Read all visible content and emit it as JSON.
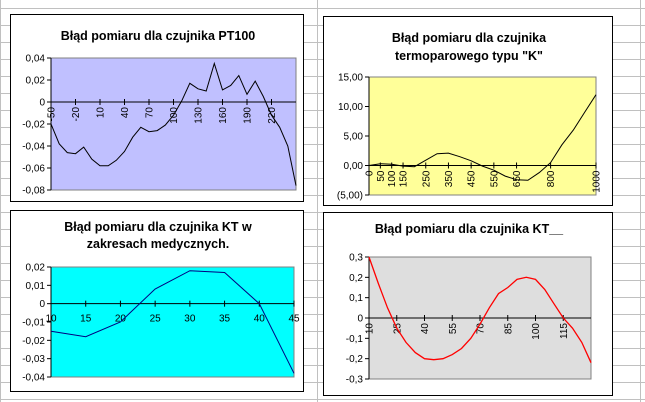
{
  "sheet": {
    "gridline_color": "#c0c0c0"
  },
  "chart_data": [
    {
      "type": "line",
      "title_lines": [
        "Błąd pomiaru dla czujnika PT100"
      ],
      "plot_bg": "#c0c0ff",
      "line_color": "#000000",
      "grid": false,
      "ylim": [
        -0.08,
        0.04
      ],
      "yticks": [
        0.04,
        0.02,
        0,
        -0.02,
        -0.04,
        -0.06,
        -0.08
      ],
      "ytick_labels": [
        "0,04",
        "0,02",
        "0",
        "-0,02",
        "-0,04",
        "-0,06",
        "-0,08"
      ],
      "xlim": [
        -50,
        250
      ],
      "xticks": [
        -50,
        -20,
        10,
        40,
        70,
        100,
        130,
        160,
        190,
        220
      ],
      "xtick_labels": [
        "-50",
        "-20",
        "10",
        "40",
        "70",
        "100",
        "130",
        "160",
        "190",
        "220"
      ],
      "x": [
        -50,
        -40,
        -30,
        -20,
        -10,
        0,
        10,
        20,
        30,
        40,
        50,
        60,
        70,
        80,
        90,
        100,
        110,
        120,
        130,
        140,
        150,
        160,
        170,
        180,
        190,
        200,
        210,
        220,
        230,
        240,
        250
      ],
      "y": [
        -0.02,
        -0.038,
        -0.046,
        -0.047,
        -0.041,
        -0.052,
        -0.058,
        -0.058,
        -0.053,
        -0.045,
        -0.032,
        -0.023,
        -0.027,
        -0.026,
        -0.021,
        -0.012,
        0.001,
        0.017,
        0.012,
        0.01,
        0.035,
        0.011,
        0.015,
        0.024,
        0.007,
        0.019,
        0.005,
        -0.012,
        -0.023,
        -0.04,
        -0.076
      ]
    },
    {
      "type": "line",
      "title_lines": [
        "Błąd pomiaru dla czujnika",
        "termoparowego typu \"K\""
      ],
      "plot_bg": "#ffff99",
      "line_color": "#000000",
      "grid": false,
      "ylim": [
        -5,
        15
      ],
      "yticks": [
        15,
        10,
        5,
        0,
        -5
      ],
      "ytick_labels": [
        "15,00",
        "10,00",
        "5,00",
        "0,00",
        "(5,00)"
      ],
      "xlim": [
        0,
        1000
      ],
      "xticks": [
        0,
        50,
        100,
        150,
        250,
        350,
        450,
        550,
        650,
        800,
        1000
      ],
      "xtick_labels": [
        "0",
        "50",
        "100",
        "150",
        "250",
        "350",
        "450",
        "550",
        "650",
        "800",
        "1000"
      ],
      "x": [
        0,
        50,
        100,
        150,
        200,
        250,
        300,
        350,
        400,
        450,
        500,
        550,
        600,
        650,
        700,
        750,
        800,
        850,
        900,
        950,
        1000
      ],
      "y": [
        0,
        0.3,
        0.2,
        -0.1,
        -0.2,
        0.9,
        2.0,
        2.1,
        1.5,
        0.8,
        -0.1,
        -0.8,
        -1.8,
        -2.4,
        -2.5,
        -1.2,
        0.5,
        3.5,
        6.0,
        9.0,
        12.0
      ]
    },
    {
      "type": "line",
      "title_lines": [
        "Błąd pomiaru dla czujnika KT w",
        "zakresach medycznych."
      ],
      "plot_bg": "#00ffff",
      "line_color": "#000080",
      "grid": false,
      "ylim": [
        -0.04,
        0.02
      ],
      "yticks": [
        0.02,
        0.01,
        0,
        -0.01,
        -0.02,
        -0.03,
        -0.04
      ],
      "ytick_labels": [
        "0,02",
        "0,01",
        "0",
        "-0,01",
        "-0,02",
        "-0,03",
        "-0,04"
      ],
      "xlim": [
        10,
        45
      ],
      "xticks": [
        10,
        15,
        20,
        25,
        30,
        35,
        40,
        45
      ],
      "xtick_labels": [
        "10",
        "15",
        "20",
        "25",
        "30",
        "35",
        "40",
        "45"
      ],
      "x": [
        10,
        15,
        20,
        25,
        30,
        35,
        40,
        45
      ],
      "y": [
        -0.015,
        -0.018,
        -0.01,
        0.008,
        0.018,
        0.017,
        0,
        -0.038
      ]
    },
    {
      "type": "line",
      "title_lines": [
        "Błąd pomiaru dla czujnika KT__"
      ],
      "plot_bg": "#dedede",
      "line_color": "#ff0000",
      "grid": false,
      "ylim": [
        -0.3,
        0.3
      ],
      "yticks": [
        0.3,
        0.2,
        0.1,
        0,
        -0.1,
        -0.2,
        -0.3
      ],
      "ytick_labels": [
        "0,3",
        "0,2",
        "0,1",
        "0",
        "-0,1",
        "-0,2",
        "-0,3"
      ],
      "xlim": [
        10,
        130
      ],
      "xticks": [
        10,
        25,
        40,
        55,
        70,
        85,
        100,
        115
      ],
      "xtick_labels": [
        "10",
        "25",
        "40",
        "55",
        "70",
        "85",
        "100",
        "115"
      ],
      "x": [
        10,
        15,
        20,
        25,
        30,
        35,
        40,
        45,
        50,
        55,
        60,
        65,
        70,
        75,
        80,
        85,
        90,
        95,
        100,
        105,
        110,
        115,
        120,
        125,
        130
      ],
      "y": [
        0.3,
        0.17,
        0.05,
        -0.05,
        -0.12,
        -0.17,
        -0.2,
        -0.205,
        -0.2,
        -0.18,
        -0.15,
        -0.1,
        -0.03,
        0.05,
        0.12,
        0.15,
        0.19,
        0.2,
        0.19,
        0.14,
        0.07,
        0,
        -0.05,
        -0.12,
        -0.22
      ]
    }
  ]
}
